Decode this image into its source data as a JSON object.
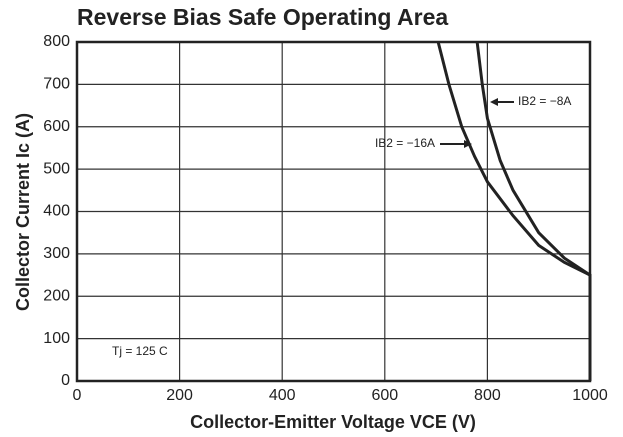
{
  "chart_data": {
    "type": "line",
    "title": "Reverse Bias Safe Operating Area",
    "x_label": "Collector-Emitter Voltage VCE (V)",
    "y_label": "Collector Current Ic (A)",
    "xlim": [
      0,
      1000
    ],
    "xticks": [
      0,
      200,
      400,
      600,
      800,
      1000
    ],
    "ylim": [
      0,
      800
    ],
    "yticks": [
      0,
      100,
      200,
      300,
      400,
      500,
      600,
      700,
      800
    ],
    "grid": true,
    "series": [
      {
        "name": "IB2 = −16A",
        "color": "#222222",
        "x": [
          704,
          725,
          750,
          775,
          800,
          850,
          900,
          950,
          1000,
          1000
        ],
        "values": [
          800,
          700,
          600,
          530,
          470,
          390,
          320,
          280,
          250,
          0
        ]
      },
      {
        "name": "IB2 = −8A",
        "color": "#222222",
        "x": [
          780,
          790,
          800,
          825,
          850,
          900,
          950,
          1000,
          1000
        ],
        "values": [
          800,
          700,
          620,
          520,
          450,
          350,
          290,
          250,
          0
        ]
      }
    ],
    "annotations": [
      "Tj = 125 C"
    ]
  }
}
